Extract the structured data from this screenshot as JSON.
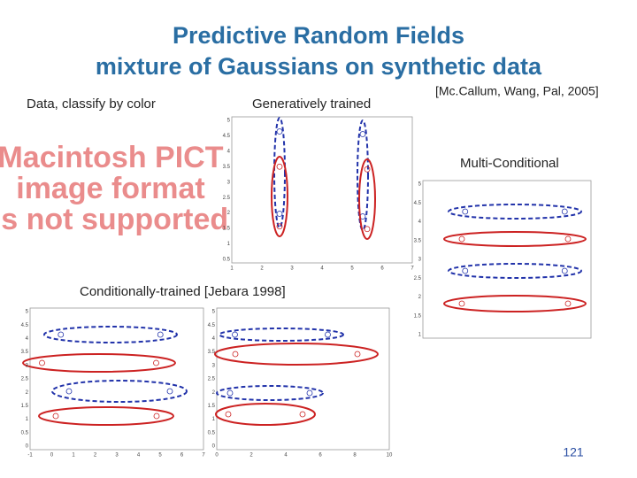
{
  "title": [
    "Predictive Random Fields",
    "mixture of Gaussians on synthetic data"
  ],
  "labels": {
    "data": "Data, classify by color",
    "generative": "Generatively trained",
    "citation": "[Mc.Callum, Wang, Pal, 2005]",
    "multi": "Multi-Conditional",
    "conditional": "Conditionally-trained [Jebara 1998]"
  },
  "pict_notice": [
    "Macintosh PICT",
    "image format",
    "is not supported"
  ],
  "plots": [
    {
      "yticks": [
        "5",
        "4.5",
        "4",
        "3.5",
        "3",
        "2.5",
        "2",
        "1.5",
        "1",
        "0.5"
      ],
      "xticks": [
        "1",
        "2",
        "3",
        "4",
        "5",
        "6",
        "7"
      ]
    },
    {
      "yticks": [
        "5",
        "4.5",
        "4",
        "3.5",
        "3",
        "2.5",
        "2",
        "1.5",
        "1"
      ],
      "xticks": []
    },
    {
      "yticks": [
        "5",
        "4.5",
        "4",
        "3.5",
        "3",
        "2.5",
        "2",
        "1.5",
        "1",
        "0.5",
        "0"
      ],
      "xticks": [
        "-1",
        "0",
        "1",
        "2",
        "3",
        "4",
        "5",
        "6",
        "7"
      ]
    },
    {
      "yticks": [
        "5",
        "4.5",
        "4",
        "3.5",
        "3",
        "2.5",
        "2",
        "1.5",
        "1",
        "0.5",
        "0"
      ],
      "xticks": [
        "0",
        "2",
        "4",
        "6",
        "8",
        "10"
      ]
    }
  ],
  "page_number": "121"
}
